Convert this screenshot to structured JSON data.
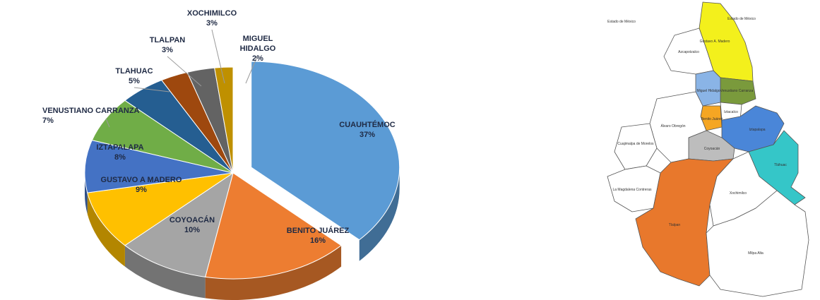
{
  "chart_data": {
    "type": "pie",
    "title": "",
    "slices": [
      {
        "label": "CUAUHTÉMOC",
        "value": 37,
        "display": "37%",
        "color": "#5b9bd5"
      },
      {
        "label": "BENITO JUÁREZ",
        "value": 16,
        "display": "16%",
        "color": "#ed7d31"
      },
      {
        "label": "COYOACÁN",
        "value": 10,
        "display": "10%",
        "color": "#a5a5a5"
      },
      {
        "label": "GUSTAVO A MADERO",
        "value": 9,
        "display": "9%",
        "color": "#ffc000"
      },
      {
        "label": "IZTAPALAPA",
        "value": 8,
        "display": "8%",
        "color": "#4472c4"
      },
      {
        "label": "VENUSTIANO CARRANZA",
        "value": 7,
        "display": "7%",
        "color": "#70ad47"
      },
      {
        "label": "TLAHUAC",
        "value": 5,
        "display": "5%",
        "color": "#255e91"
      },
      {
        "label": "TLALPAN",
        "value": 3,
        "display": "3%",
        "color": "#9e480e"
      },
      {
        "label": "XOCHIMILCO",
        "value": 3,
        "display": "3%",
        "color": "#636363"
      },
      {
        "label": "MIGUEL HIDALGO",
        "value": 2,
        "display": "2%",
        "color": "#bf9000"
      }
    ]
  },
  "map": {
    "regions": [
      {
        "name": "Gustavo A. Madero",
        "color": "#f3f01c"
      },
      {
        "name": "Venustiano Carranza",
        "color": "#7a9a3c"
      },
      {
        "name": "Miguel Hidalgo",
        "color": "#8ab4e6"
      },
      {
        "name": "Benito Juárez",
        "color": "#f5a623"
      },
      {
        "name": "Iztacalco",
        "color": "#ffffff"
      },
      {
        "name": "Iztapalapa",
        "color": "#4a86d8"
      },
      {
        "name": "Tláhuac",
        "color": "#35c6c8"
      },
      {
        "name": "Coyoacán",
        "color": "#bdbdbd"
      },
      {
        "name": "Tlalpan",
        "color": "#e8782c"
      },
      {
        "name": "Azcapotzalco",
        "color": "#ffffff"
      },
      {
        "name": "Álvaro Obregón",
        "color": "#ffffff"
      },
      {
        "name": "Cuajimalpa de Morelos",
        "color": "#ffffff"
      },
      {
        "name": "La Magdalena Contreras",
        "color": "#ffffff"
      },
      {
        "name": "Xochimilco",
        "color": "#ffffff"
      },
      {
        "name": "Milpa Alta",
        "color": "#ffffff"
      }
    ],
    "outer_labels": {
      "west": "Estado de México",
      "east": "Estado de México"
    }
  }
}
